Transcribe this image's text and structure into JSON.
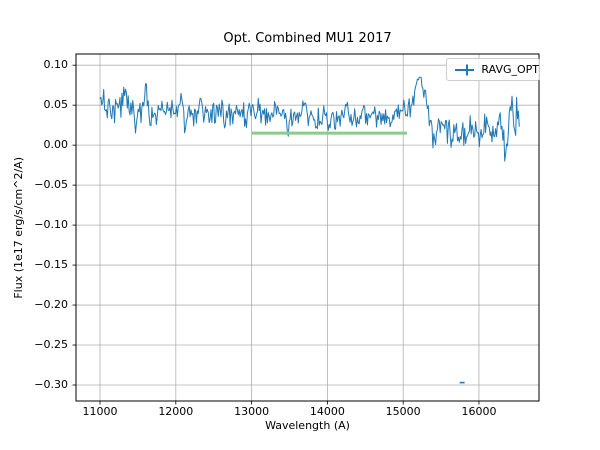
{
  "figure": {
    "kind": "matplotlib-figure"
  },
  "chart_data": {
    "type": "line",
    "title": "Opt. Combined MU1 2017",
    "xlabel": "Wavelength (A)",
    "ylabel": "Flux (1e17 erg/s/cm^2/A)",
    "xlim": [
      10683,
      16792
    ],
    "ylim": [
      -0.32,
      0.114
    ],
    "grid": true,
    "grid_color": "#b0b0b0",
    "spine_color": "#000000",
    "x_ticks": [
      11000,
      12000,
      13000,
      14000,
      15000,
      16000
    ],
    "x_tick_labels": [
      "11000",
      "12000",
      "13000",
      "14000",
      "15000",
      "16000"
    ],
    "y_ticks": [
      0.1,
      0.05,
      0.0,
      -0.05,
      -0.1,
      -0.15,
      -0.2,
      -0.25,
      -0.3
    ],
    "y_tick_labels": [
      "0.10",
      "0.05",
      "0.00",
      "−0.05",
      "−0.10",
      "−0.15",
      "−0.20",
      "−0.25",
      "−0.30"
    ],
    "legend": {
      "position": "upper right",
      "entries": [
        {
          "label": "RAVG_OPT",
          "color": "#1f77b4",
          "marker": "errorbar-plus"
        }
      ]
    },
    "series": [
      {
        "name": "RAVG_OPT",
        "color": "#1f77b4",
        "style": "noisy-errorbar-line",
        "linewidth": 1,
        "x_start": 11000,
        "x_end": 16540,
        "x_step": 12,
        "trend": [
          [
            11000,
            0.052
          ],
          [
            11150,
            0.048
          ],
          [
            11300,
            0.05
          ],
          [
            11600,
            0.046
          ],
          [
            11900,
            0.045
          ],
          [
            12300,
            0.043
          ],
          [
            12800,
            0.041
          ],
          [
            13300,
            0.039
          ],
          [
            13800,
            0.037
          ],
          [
            14300,
            0.035
          ],
          [
            14700,
            0.035
          ],
          [
            15000,
            0.039
          ],
          [
            15080,
            0.046
          ],
          [
            15150,
            0.068
          ],
          [
            15210,
            0.091
          ],
          [
            15270,
            0.068
          ],
          [
            15340,
            0.04
          ],
          [
            15430,
            0.026
          ],
          [
            15550,
            0.02
          ],
          [
            15750,
            0.017
          ],
          [
            16000,
            0.018
          ],
          [
            16250,
            0.019
          ],
          [
            16450,
            0.023
          ],
          [
            16540,
            0.024
          ]
        ],
        "noise_sigma": [
          [
            11000,
            0.0095
          ],
          [
            11600,
            0.0085
          ],
          [
            12400,
            0.0078
          ],
          [
            13400,
            0.0072
          ],
          [
            14600,
            0.0072
          ],
          [
            15000,
            0.0068
          ],
          [
            15250,
            0.006
          ],
          [
            15450,
            0.0095
          ],
          [
            15900,
            0.0085
          ],
          [
            16150,
            0.0095
          ],
          [
            16350,
            0.013
          ],
          [
            16540,
            0.0145
          ]
        ],
        "spikes": [
          [
            11040,
            0.018
          ],
          [
            11330,
            0.022
          ],
          [
            11470,
            -0.026
          ],
          [
            11610,
            0.026
          ],
          [
            11660,
            -0.018
          ],
          [
            12070,
            0.028
          ],
          [
            12115,
            -0.02
          ],
          [
            12320,
            0.016
          ],
          [
            12650,
            -0.016
          ],
          [
            12920,
            -0.016
          ],
          [
            13100,
            0.016
          ],
          [
            13480,
            -0.022
          ],
          [
            13700,
            0.014
          ],
          [
            13860,
            -0.018
          ],
          [
            14030,
            -0.016
          ],
          [
            14250,
            0.013
          ],
          [
            14480,
            0.013
          ],
          [
            14830,
            -0.016
          ],
          [
            15400,
            -0.024
          ],
          [
            15650,
            -0.016
          ],
          [
            16100,
            0.018
          ],
          [
            16350,
            -0.02
          ],
          [
            16440,
            0.026
          ],
          [
            16505,
            0.022
          ]
        ],
        "noise_seed": 20170,
        "outlier": {
          "x1": 15745,
          "x2": 15810,
          "y": -0.297
        }
      },
      {
        "name": "baseline-segment",
        "color": "#8bcb8b",
        "style": "solid",
        "linewidth": 3,
        "points": [
          [
            13000,
            0.015
          ],
          [
            15050,
            0.015
          ]
        ]
      }
    ]
  }
}
